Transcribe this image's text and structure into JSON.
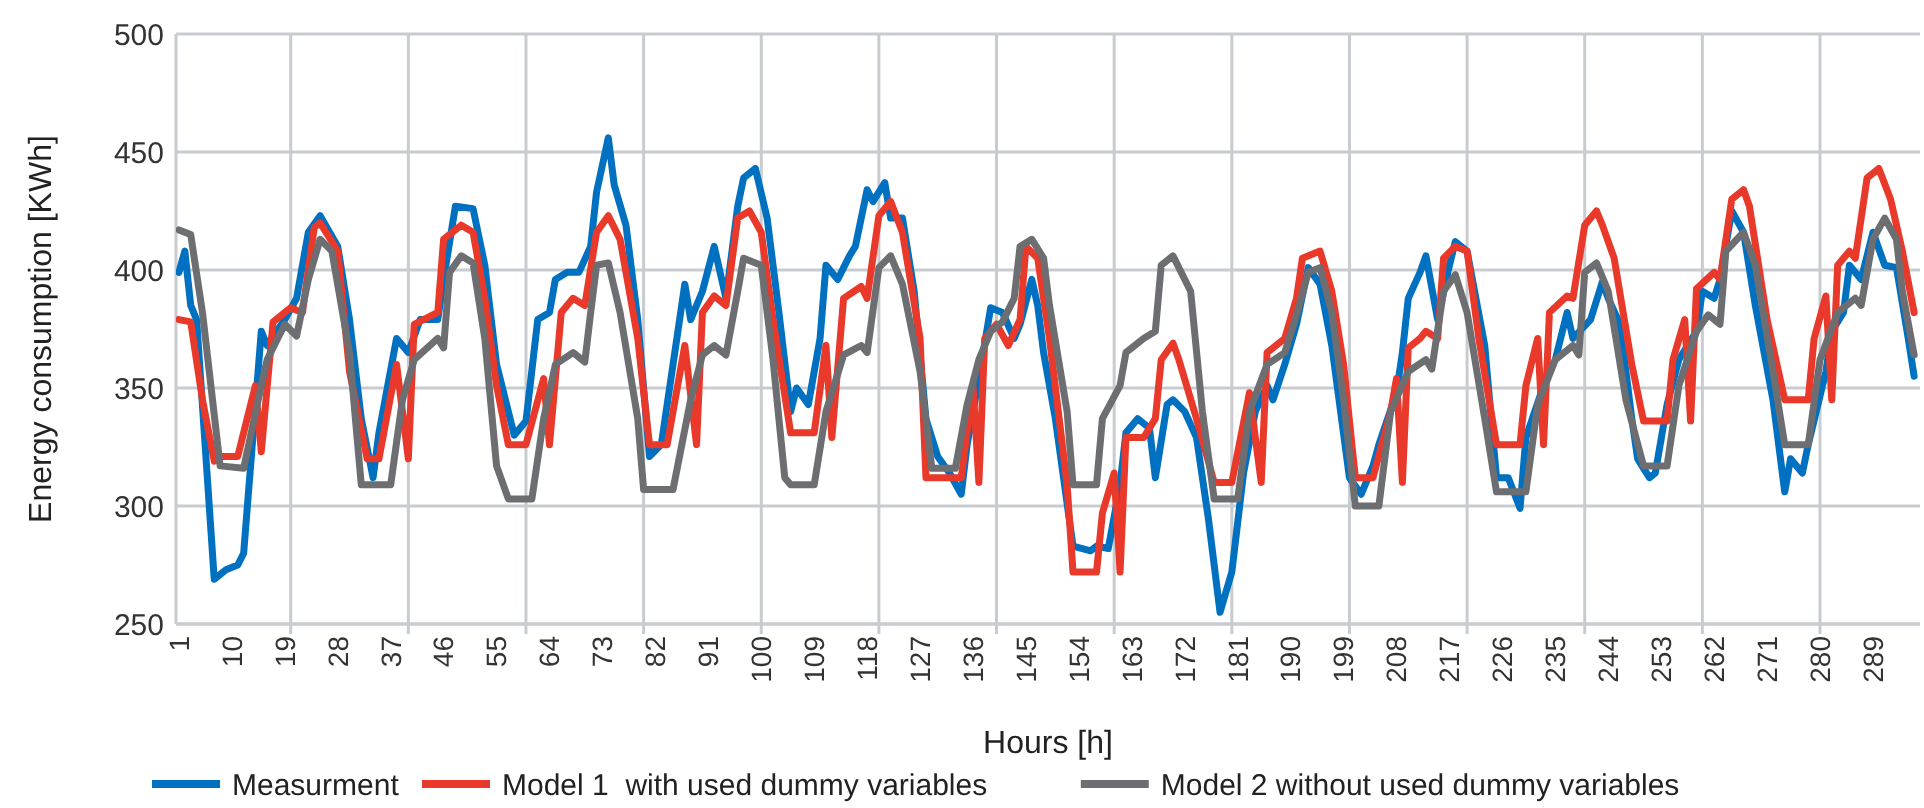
{
  "chart_data": {
    "type": "line",
    "xlabel": "Hours [h]",
    "ylabel": "Energy consumption [KWh]",
    "xlim": [
      0.5,
      297
    ],
    "ylim": [
      250,
      500
    ],
    "yticks": [
      250,
      300,
      350,
      400,
      450,
      500
    ],
    "xticks": [
      1,
      10,
      19,
      28,
      37,
      46,
      55,
      64,
      73,
      82,
      91,
      100,
      109,
      118,
      127,
      136,
      145,
      154,
      163,
      172,
      181,
      190,
      199,
      208,
      217,
      226,
      235,
      244,
      253,
      262,
      271,
      280,
      289,
      {
        "value": 20,
        "label": null
      },
      {
        "value": 40,
        "label": null
      },
      {
        "value": 60,
        "label": null
      },
      {
        "value": 80,
        "label": null
      },
      {
        "value": 100,
        "label": null
      },
      {
        "value": 120,
        "label": null
      },
      {
        "value": 140,
        "label": null
      },
      {
        "value": 160,
        "label": null
      },
      {
        "value": 180,
        "label": null
      },
      {
        "value": 200,
        "label": null
      },
      {
        "value": 220,
        "label": null
      },
      {
        "value": 240,
        "label": null
      },
      {
        "value": 260,
        "label": null
      },
      {
        "value": 280,
        "label": null
      }
    ],
    "grid": true,
    "legend": "bottom",
    "marker": "none",
    "line_style": "solid",
    "series": [
      {
        "name": "Measurment",
        "color": "#0070c0",
        "x": [
          1,
          2,
          3,
          4,
          7,
          9,
          11,
          12,
          15,
          16,
          19,
          21,
          23,
          25,
          28,
          30,
          32,
          34,
          35,
          38,
          40,
          42,
          45,
          46,
          48,
          51,
          53,
          55,
          58,
          60,
          62,
          64,
          65,
          67,
          69,
          71,
          72,
          74,
          75,
          77,
          79,
          81,
          83,
          85,
          87,
          88,
          90,
          92,
          94,
          96,
          97,
          99,
          101,
          103,
          105,
          106,
          108,
          110,
          111,
          113,
          115,
          116,
          118,
          119,
          121,
          122,
          124,
          126,
          128,
          130,
          132,
          134,
          135,
          137,
          139,
          141,
          143,
          144,
          146,
          147,
          148,
          150,
          153,
          156,
          157,
          159,
          161,
          162,
          164,
          166,
          167,
          169,
          170,
          172,
          174,
          176,
          178,
          180,
          182,
          184,
          186,
          187,
          189,
          191,
          193,
          195,
          197,
          200,
          202,
          204,
          205,
          208,
          209,
          210,
          212,
          213,
          215,
          217,
          218,
          220,
          223,
          225,
          227,
          229,
          230,
          233,
          235,
          237,
          238,
          241,
          243,
          244,
          246,
          248,
          249,
          251,
          252,
          254,
          256,
          259,
          260,
          262,
          263,
          265,
          267,
          269,
          272,
          274,
          275,
          277,
          278,
          281,
          282,
          284,
          285,
          287,
          289,
          291,
          293,
          295,
          296
        ],
        "values": [
          399,
          408,
          385,
          379,
          269,
          273,
          275,
          280,
          374,
          368,
          379,
          388,
          416,
          423,
          410,
          379,
          337,
          312,
          331,
          371,
          365,
          379,
          379,
          396,
          427,
          426,
          402,
          360,
          330,
          336,
          379,
          382,
          396,
          399,
          399,
          410,
          433,
          456,
          436,
          419,
          379,
          321,
          326,
          360,
          394,
          379,
          391,
          410,
          388,
          427,
          439,
          443,
          422,
          382,
          340,
          350,
          343,
          371,
          402,
          396,
          406,
          410,
          434,
          429,
          437,
          422,
          422,
          391,
          337,
          321,
          314,
          305,
          326,
          354,
          384,
          382,
          371,
          377,
          396,
          385,
          365,
          337,
          283,
          281,
          283,
          282,
          309,
          331,
          337,
          333,
          312,
          343,
          345,
          340,
          329,
          295,
          255,
          272,
          314,
          340,
          351,
          345,
          360,
          377,
          401,
          394,
          368,
          312,
          305,
          317,
          326,
          348,
          365,
          388,
          399,
          406,
          379,
          402,
          412,
          408,
          368,
          312,
          312,
          299,
          329,
          351,
          362,
          382,
          371,
          379,
          395,
          388,
          377,
          337,
          320,
          312,
          314,
          343,
          362,
          374,
          391,
          388,
          396,
          425,
          416,
          385,
          345,
          306,
          320,
          314,
          326,
          357,
          374,
          382,
          402,
          396,
          416,
          402,
          401,
          371,
          355
        ]
      },
      {
        "name": "Model 1  with used dummy variables",
        "color": "#e8392a",
        "x": [
          1,
          3,
          5,
          7,
          8,
          11,
          14,
          15,
          17,
          20,
          22,
          24,
          25,
          28,
          30,
          33,
          35,
          38,
          40,
          41,
          45,
          46,
          49,
          51,
          53,
          55,
          57,
          60,
          63,
          64,
          66,
          68,
          70,
          72,
          74,
          76,
          79,
          81,
          84,
          87,
          89,
          90,
          92,
          94,
          96,
          98,
          100,
          102,
          105,
          109,
          111,
          112,
          114,
          117,
          118,
          120,
          122,
          124,
          127,
          128,
          134,
          136,
          137,
          138,
          140,
          142,
          144,
          145,
          147,
          149,
          152,
          153,
          157,
          158,
          160,
          161,
          162,
          165,
          167,
          168,
          170,
          171,
          174,
          177,
          180,
          183,
          185,
          186,
          189,
          191,
          192,
          195,
          197,
          199,
          201,
          204,
          207,
          208,
          209,
          210,
          212,
          213,
          215,
          216,
          218,
          220,
          222,
          225,
          229,
          230,
          232,
          233,
          234,
          237,
          238,
          240,
          242,
          243,
          245,
          248,
          250,
          254,
          255,
          257,
          258,
          259,
          262,
          263,
          265,
          267,
          268,
          271,
          274,
          278,
          279,
          281,
          282,
          283,
          285,
          286,
          288,
          290,
          292,
          294,
          296
        ],
        "values": [
          379,
          378,
          345,
          319,
          321,
          321,
          351,
          323,
          378,
          384,
          382,
          418,
          420,
          408,
          357,
          320,
          320,
          360,
          320,
          377,
          382,
          413,
          419,
          416,
          388,
          351,
          326,
          326,
          354,
          326,
          382,
          388,
          385,
          416,
          423,
          413,
          371,
          326,
          326,
          368,
          326,
          382,
          389,
          385,
          422,
          425,
          416,
          379,
          331,
          331,
          368,
          329,
          388,
          393,
          388,
          423,
          429,
          416,
          371,
          312,
          312,
          351,
          310,
          371,
          377,
          368,
          379,
          410,
          405,
          371,
          309,
          272,
          272,
          297,
          314,
          272,
          329,
          329,
          337,
          362,
          369,
          362,
          337,
          310,
          310,
          348,
          310,
          365,
          371,
          388,
          405,
          408,
          391,
          360,
          312,
          312,
          340,
          354,
          310,
          367,
          371,
          374,
          371,
          405,
          410,
          408,
          371,
          326,
          326,
          351,
          371,
          326,
          382,
          389,
          388,
          419,
          425,
          419,
          405,
          360,
          336,
          336,
          362,
          379,
          336,
          392,
          399,
          396,
          430,
          434,
          427,
          379,
          345,
          345,
          371,
          389,
          345,
          402,
          408,
          405,
          439,
          443,
          430,
          408,
          382
        ]
      },
      {
        "name": "Model 2 without used dummy variables",
        "color": "#6d6e71",
        "x": [
          1,
          3,
          5,
          8,
          12,
          15,
          16,
          19,
          21,
          23,
          25,
          27,
          30,
          32,
          37,
          39,
          41,
          45,
          46,
          47,
          49,
          51,
          53,
          55,
          57,
          61,
          63,
          65,
          68,
          70,
          71,
          72,
          74,
          76,
          79,
          80,
          85,
          88,
          90,
          92,
          94,
          96,
          97,
          100,
          102,
          104,
          105,
          109,
          111,
          114,
          117,
          118,
          120,
          122,
          124,
          127,
          129,
          133,
          135,
          137,
          139,
          141,
          143,
          144,
          146,
          148,
          149,
          152,
          153,
          157,
          158,
          161,
          162,
          165,
          167,
          168,
          170,
          173,
          175,
          177,
          181,
          183,
          186,
          189,
          191,
          193,
          195,
          197,
          199,
          201,
          205,
          207,
          210,
          213,
          214,
          216,
          218,
          220,
          223,
          225,
          230,
          232,
          235,
          238,
          239,
          240,
          242,
          244,
          247,
          250,
          254,
          256,
          259,
          261,
          263,
          264,
          267,
          269,
          272,
          274,
          278,
          280,
          283,
          286,
          287,
          289,
          291,
          293,
          294,
          296
        ],
        "values": [
          417,
          415,
          382,
          317,
          316,
          351,
          362,
          377,
          372,
          396,
          413,
          408,
          365,
          309,
          309,
          345,
          362,
          371,
          367,
          399,
          406,
          403,
          371,
          317,
          303,
          303,
          337,
          360,
          365,
          361,
          382,
          402,
          403,
          382,
          337,
          307,
          307,
          345,
          364,
          368,
          364,
          391,
          405,
          402,
          362,
          312,
          309,
          309,
          340,
          364,
          368,
          365,
          401,
          406,
          394,
          357,
          316,
          316,
          343,
          362,
          374,
          378,
          388,
          410,
          413,
          405,
          385,
          340,
          309,
          309,
          337,
          351,
          365,
          371,
          374,
          402,
          406,
          391,
          340,
          303,
          303,
          340,
          360,
          365,
          381,
          399,
          401,
          382,
          345,
          300,
          300,
          340,
          357,
          362,
          358,
          391,
          398,
          382,
          337,
          306,
          306,
          343,
          362,
          368,
          364,
          399,
          403,
          391,
          345,
          317,
          317,
          351,
          374,
          381,
          377,
          408,
          416,
          402,
          357,
          326,
          326,
          362,
          382,
          388,
          385,
          413,
          422,
          413,
          391,
          364
        ]
      }
    ]
  }
}
